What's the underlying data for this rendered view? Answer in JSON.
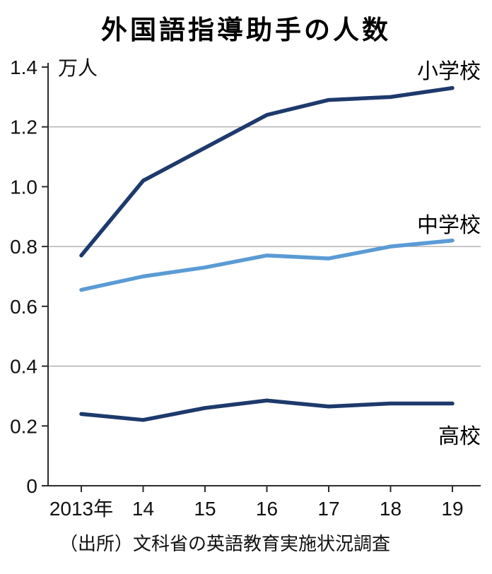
{
  "title": "外国語指導助手の人数",
  "source": "（出所）文科省の英語教育実施状況調査",
  "chart_data": {
    "type": "line",
    "title": "外国語指導助手の人数",
    "unit_label": "万人",
    "x_tick_labels": [
      "2013年",
      "14",
      "15",
      "16",
      "17",
      "18",
      "19"
    ],
    "y_ticks": [
      0,
      0.2,
      0.4,
      0.6,
      0.8,
      1.0,
      1.2,
      1.4
    ],
    "y_tick_labels": [
      "0",
      "0.2",
      "0.4",
      "0.6",
      "0.8",
      "1.0",
      "1.2",
      "1.4"
    ],
    "ylim": [
      0,
      1.4
    ],
    "grid": true,
    "gridlines_at": [
      0.4,
      0.8,
      1.2
    ],
    "legend_position": "inline-right",
    "axis_color": "#2b2b2b",
    "grid_color": "#8f8f8f",
    "label_color": "#000000",
    "series": [
      {
        "name": "小学校",
        "id": "elementary-school",
        "color": "#1e3a6c",
        "values": [
          0.77,
          1.02,
          1.13,
          1.24,
          1.29,
          1.3,
          1.33
        ]
      },
      {
        "name": "中学校",
        "id": "junior-high-school",
        "color": "#5b9bd5",
        "values": [
          0.655,
          0.7,
          0.73,
          0.77,
          0.76,
          0.8,
          0.82
        ]
      },
      {
        "name": "高校",
        "id": "high-school",
        "color": "#1e3a6c",
        "values": [
          0.24,
          0.22,
          0.26,
          0.285,
          0.265,
          0.275,
          0.275
        ]
      }
    ]
  }
}
